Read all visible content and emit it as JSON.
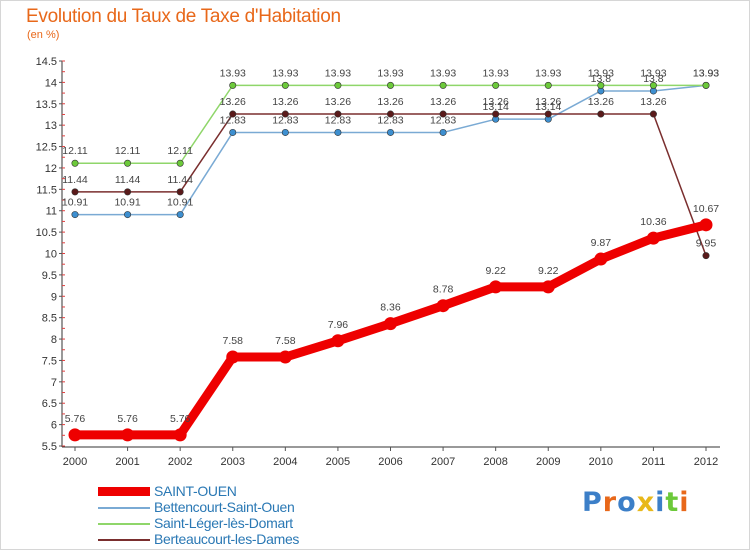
{
  "chart_data": {
    "type": "line",
    "title": "Evolution du Taux de Taxe d'Habitation",
    "subtitle": "(en %)",
    "x": [
      "2000",
      "2001",
      "2002",
      "2003",
      "2004",
      "2005",
      "2006",
      "2007",
      "2008",
      "2009",
      "2010",
      "2011",
      "2012"
    ],
    "ylim": [
      5.5,
      14.5
    ],
    "yticks": [
      "5.5",
      "6",
      "6.5",
      "7",
      "7.5",
      "8",
      "8.5",
      "9",
      "9.5",
      "10",
      "10.5",
      "11",
      "11.5",
      "12",
      "12.5",
      "13",
      "13.5",
      "14",
      "14.5"
    ],
    "grid": false,
    "legend_position": "bottom-left",
    "series": [
      {
        "name": "SAINT-OUEN",
        "color": "#ee0000",
        "marker": "#ee0000",
        "values": [
          5.76,
          5.76,
          5.76,
          7.58,
          7.58,
          7.96,
          8.36,
          8.78,
          9.22,
          9.22,
          9.87,
          10.36,
          10.67
        ],
        "labels": [
          "5.76",
          "5.76",
          "5.76",
          "7.58",
          "7.58",
          "7.96",
          "8.36",
          "8.78",
          "9.22",
          "9.22",
          "9.87",
          "10.36",
          "10.67"
        ]
      },
      {
        "name": "Bettencourt-Saint-Ouen",
        "color": "#7aaad4",
        "marker": "#3d8fd0",
        "values": [
          10.91,
          10.91,
          10.91,
          12.83,
          12.83,
          12.83,
          12.83,
          12.83,
          13.14,
          13.14,
          13.8,
          13.8,
          13.93
        ],
        "labels": [
          "10.91",
          "10.91",
          "10.91",
          "12.83",
          "12.83",
          "12.83",
          "12.83",
          "12.83",
          "13.14",
          "13.14",
          "13.8",
          "13.8",
          "13.93"
        ]
      },
      {
        "name": "Saint-Léger-lès-Domart",
        "color": "#8fd66a",
        "marker": "#6cc93a",
        "values": [
          12.11,
          12.11,
          12.11,
          13.93,
          13.93,
          13.93,
          13.93,
          13.93,
          13.93,
          13.93,
          13.93,
          13.93,
          13.93
        ],
        "labels": [
          "12.11",
          "12.11",
          "12.11",
          "13.93",
          "13.93",
          "13.93",
          "13.93",
          "13.93",
          "13.93",
          "13.93",
          "13.93",
          "13.93",
          "13.93"
        ]
      },
      {
        "name": "Berteaucourt-les-Dames",
        "color": "#7a2e2e",
        "marker": "#5a1a1a",
        "values": [
          11.44,
          11.44,
          11.44,
          13.26,
          13.26,
          13.26,
          13.26,
          13.26,
          13.26,
          13.26,
          13.26,
          13.26,
          9.95
        ],
        "labels": [
          "11.44",
          "11.44",
          "11.44",
          "13.26",
          "13.26",
          "13.26",
          "13.26",
          "13.26",
          "13.26",
          "13.26",
          "13.26",
          "13.26",
          "9.95"
        ]
      }
    ]
  },
  "logo": {
    "letters": [
      "P",
      "r",
      "o",
      "x",
      "i",
      "t",
      "i"
    ],
    "colors": [
      "#3c7fc8",
      "#e8681a",
      "#3c7fc8",
      "#e8b81a",
      "#3c7fc8",
      "#6cc93a",
      "#e8681a"
    ]
  }
}
